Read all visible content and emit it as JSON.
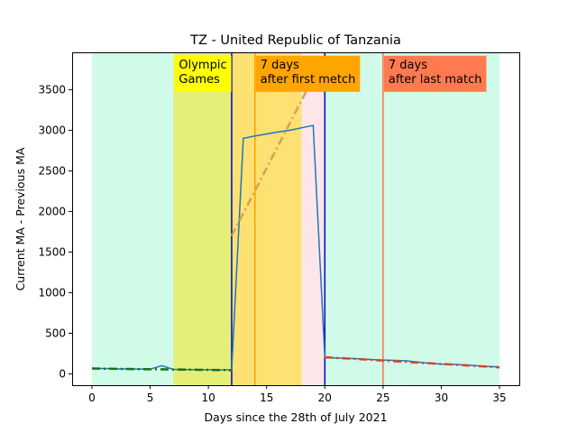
{
  "chart_data": {
    "type": "line",
    "title": "TZ - United Republic of Tanzania",
    "xlabel": "Days since the 28th of July 2021",
    "ylabel": "Current MA - Previous MA",
    "xlim": [
      -1.7,
      36.7
    ],
    "ylim": [
      -140,
      3960
    ],
    "xticks": [
      0,
      5,
      10,
      15,
      20,
      25,
      30,
      35
    ],
    "yticks": [
      0,
      500,
      1000,
      1500,
      2000,
      2500,
      3000,
      3500
    ],
    "grid": false,
    "bands": [
      {
        "x0": 0,
        "x1": 35,
        "color": "#d0fbe9"
      },
      {
        "x0": 7,
        "x1": 12,
        "color": "#e5ef77"
      },
      {
        "x0": 12,
        "x1": 18,
        "color": "#fde173"
      },
      {
        "x0": 18,
        "x1": 20,
        "color": "#fde6ea"
      }
    ],
    "vlines": [
      {
        "x": 12,
        "color": "#0a13c4"
      },
      {
        "x": 20,
        "color": "#0a13c4"
      },
      {
        "x": 14,
        "color": "#ffa500"
      },
      {
        "x": 25,
        "color": "#ff7a50"
      }
    ],
    "annotations": [
      {
        "id": "olympic",
        "lines": [
          "Olympic",
          "Games"
        ],
        "x": 7,
        "y": 3540,
        "bg": "#ffff00"
      },
      {
        "id": "first",
        "lines": [
          "7 days",
          "after first metch"
        ],
        "x": 14,
        "y": 3540,
        "bg": "#ffa500"
      },
      {
        "id": "last",
        "lines": [
          "7 days",
          "after last match"
        ],
        "x": 25,
        "y": 3540,
        "bg": "#ff7a50"
      }
    ],
    "series": [
      {
        "style": "solid",
        "color": "#1f77b4",
        "x": [
          0,
          1,
          2,
          3,
          4,
          5,
          6,
          7,
          8,
          9,
          10,
          11,
          12,
          13,
          14,
          15,
          16,
          17,
          18,
          19,
          20,
          21,
          22,
          23,
          24,
          25,
          26,
          27,
          28,
          29,
          30,
          31,
          32,
          33,
          34,
          35
        ],
        "values": [
          65,
          65,
          62,
          60,
          58,
          58,
          100,
          55,
          53,
          50,
          50,
          48,
          50,
          2900,
          2930,
          2955,
          2980,
          3000,
          3030,
          3060,
          200,
          195,
          190,
          185,
          175,
          170,
          165,
          160,
          145,
          130,
          120,
          115,
          110,
          100,
          90,
          85
        ]
      },
      {
        "style": "dashdot",
        "color": "#1a6e1a",
        "x": [
          0,
          12
        ],
        "values": [
          65,
          45
        ]
      },
      {
        "style": "dashdot",
        "color": "#d9a04a",
        "x": [
          12,
          19.2
        ],
        "values": [
          1700,
          3700
        ]
      },
      {
        "style": "dashdot",
        "color": "#e0402a",
        "x": [
          20,
          35
        ],
        "values": [
          205,
          80
        ]
      }
    ]
  }
}
